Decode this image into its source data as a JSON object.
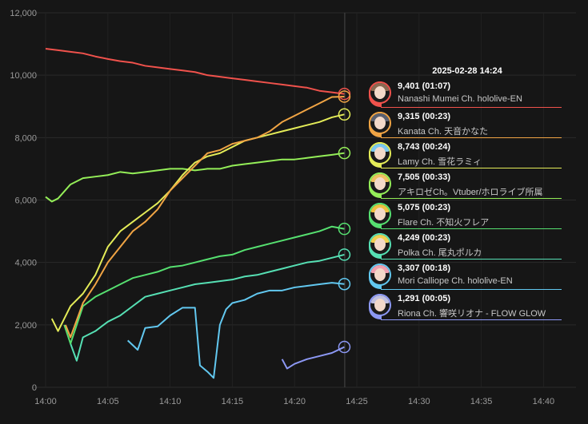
{
  "chart_data": {
    "type": "line",
    "title": "",
    "xlabel": "",
    "ylabel": "",
    "x_ticks": [
      "14:00",
      "14:05",
      "14:10",
      "14:15",
      "14:20",
      "14:25",
      "14:30",
      "14:35",
      "14:40"
    ],
    "y_ticks": [
      "0",
      "2,000",
      "4,000",
      "6,000",
      "8,000",
      "10,000",
      "12,000"
    ],
    "xlim_minutes": [
      0,
      42
    ],
    "ylim": [
      0,
      12000
    ],
    "grid": true,
    "hover_minute": 24,
    "tooltip": {
      "title": "2025-02-28 14:24"
    },
    "series": [
      {
        "name": "Nanashi Mumei Ch. hololive-EN",
        "value_label": "9,401",
        "duration": "(01:07)",
        "color": "#f0524c",
        "hair": "#8a6a52",
        "points": [
          [
            0,
            10850
          ],
          [
            1,
            10800
          ],
          [
            2,
            10750
          ],
          [
            3,
            10700
          ],
          [
            4,
            10600
          ],
          [
            5,
            10520
          ],
          [
            6,
            10450
          ],
          [
            7,
            10400
          ],
          [
            8,
            10300
          ],
          [
            9,
            10250
          ],
          [
            10,
            10200
          ],
          [
            11,
            10150
          ],
          [
            12,
            10100
          ],
          [
            13,
            10000
          ],
          [
            14,
            9950
          ],
          [
            15,
            9900
          ],
          [
            16,
            9850
          ],
          [
            17,
            9800
          ],
          [
            18,
            9750
          ],
          [
            19,
            9700
          ],
          [
            20,
            9650
          ],
          [
            21,
            9600
          ],
          [
            22,
            9500
          ],
          [
            23,
            9450
          ],
          [
            24,
            9401
          ]
        ]
      },
      {
        "name": "Kanata Ch. 天音かなた",
        "value_label": "9,315",
        "duration": "(00:23)",
        "color": "#f0a444",
        "hair": "#5a6070",
        "points": [
          [
            1.6,
            2000
          ],
          [
            2,
            1600
          ],
          [
            3,
            2700
          ],
          [
            4,
            3300
          ],
          [
            5,
            4000
          ],
          [
            6,
            4500
          ],
          [
            7,
            5000
          ],
          [
            8,
            5300
          ],
          [
            9,
            5700
          ],
          [
            10,
            6300
          ],
          [
            11,
            6700
          ],
          [
            12,
            7100
          ],
          [
            13,
            7500
          ],
          [
            14,
            7600
          ],
          [
            15,
            7800
          ],
          [
            16,
            7900
          ],
          [
            17,
            8000
          ],
          [
            18,
            8200
          ],
          [
            19,
            8500
          ],
          [
            20,
            8700
          ],
          [
            21,
            8900
          ],
          [
            22,
            9100
          ],
          [
            23,
            9300
          ],
          [
            24,
            9315
          ]
        ]
      },
      {
        "name": "Lamy Ch. 雪花ラミィ",
        "value_label": "8,743",
        "duration": "(00:24)",
        "color": "#e4ec58",
        "hair": "#7ac8f0",
        "points": [
          [
            0.5,
            2200
          ],
          [
            1,
            1800
          ],
          [
            2,
            2600
          ],
          [
            3,
            3000
          ],
          [
            4,
            3600
          ],
          [
            5,
            4500
          ],
          [
            6,
            5000
          ],
          [
            7,
            5300
          ],
          [
            8,
            5600
          ],
          [
            9,
            5900
          ],
          [
            10,
            6300
          ],
          [
            11,
            6800
          ],
          [
            12,
            7200
          ],
          [
            13,
            7400
          ],
          [
            14,
            7500
          ],
          [
            15,
            7700
          ],
          [
            16,
            7900
          ],
          [
            17,
            8000
          ],
          [
            18,
            8100
          ],
          [
            19,
            8200
          ],
          [
            20,
            8300
          ],
          [
            21,
            8400
          ],
          [
            22,
            8500
          ],
          [
            23,
            8650
          ],
          [
            24,
            8743
          ]
        ]
      },
      {
        "name": "アキロゼCh。Vtuber/ホロライブ所属",
        "value_label": "7,505",
        "duration": "(00:33)",
        "color": "#94ee58",
        "hair": "#f0c060",
        "points": [
          [
            0,
            6100
          ],
          [
            0.5,
            5950
          ],
          [
            1,
            6050
          ],
          [
            2,
            6500
          ],
          [
            3,
            6700
          ],
          [
            4,
            6750
          ],
          [
            5,
            6800
          ],
          [
            6,
            6900
          ],
          [
            7,
            6850
          ],
          [
            8,
            6900
          ],
          [
            9,
            6950
          ],
          [
            10,
            7000
          ],
          [
            11,
            7000
          ],
          [
            12,
            6950
          ],
          [
            13,
            7000
          ],
          [
            14,
            7000
          ],
          [
            15,
            7100
          ],
          [
            16,
            7150
          ],
          [
            17,
            7200
          ],
          [
            18,
            7250
          ],
          [
            19,
            7300
          ],
          [
            20,
            7300
          ],
          [
            21,
            7350
          ],
          [
            22,
            7400
          ],
          [
            23,
            7450
          ],
          [
            24,
            7505
          ]
        ]
      },
      {
        "name": "Flare Ch. 不知火フレア",
        "value_label": "5,075",
        "duration": "(00:23)",
        "color": "#56e070",
        "hair": "#f0c040",
        "points": [
          [
            1.5,
            2000
          ],
          [
            2,
            1400
          ],
          [
            3,
            2600
          ],
          [
            4,
            2900
          ],
          [
            5,
            3100
          ],
          [
            6,
            3300
          ],
          [
            7,
            3500
          ],
          [
            8,
            3600
          ],
          [
            9,
            3700
          ],
          [
            10,
            3850
          ],
          [
            11,
            3900
          ],
          [
            12,
            4000
          ],
          [
            13,
            4100
          ],
          [
            14,
            4200
          ],
          [
            15,
            4250
          ],
          [
            16,
            4400
          ],
          [
            17,
            4500
          ],
          [
            18,
            4600
          ],
          [
            19,
            4700
          ],
          [
            20,
            4800
          ],
          [
            21,
            4900
          ],
          [
            22,
            5000
          ],
          [
            23,
            5150
          ],
          [
            24,
            5075
          ]
        ]
      },
      {
        "name": "Polka Ch. 尾丸ポルカ",
        "value_label": "4,249",
        "duration": "(00:23)",
        "color": "#56e0b4",
        "hair": "#f0d050",
        "points": [
          [
            2,
            1400
          ],
          [
            2.5,
            850
          ],
          [
            3,
            1600
          ],
          [
            4,
            1800
          ],
          [
            5,
            2100
          ],
          [
            6,
            2300
          ],
          [
            7,
            2600
          ],
          [
            8,
            2900
          ],
          [
            9,
            3000
          ],
          [
            10,
            3100
          ],
          [
            11,
            3200
          ],
          [
            12,
            3300
          ],
          [
            13,
            3350
          ],
          [
            14,
            3400
          ],
          [
            15,
            3450
          ],
          [
            16,
            3550
          ],
          [
            17,
            3600
          ],
          [
            18,
            3700
          ],
          [
            19,
            3800
          ],
          [
            20,
            3900
          ],
          [
            21,
            4000
          ],
          [
            22,
            4050
          ],
          [
            23,
            4150
          ],
          [
            24,
            4249
          ]
        ]
      },
      {
        "name": "Mori Calliope Ch. hololive-EN",
        "value_label": "3,307",
        "duration": "(00:18)",
        "color": "#62c8f0",
        "hair": "#f0a0b0",
        "points": [
          [
            6.6,
            1500
          ],
          [
            7,
            1350
          ],
          [
            7.4,
            1200
          ],
          [
            8,
            1900
          ],
          [
            9,
            1950
          ],
          [
            10,
            2300
          ],
          [
            11,
            2550
          ],
          [
            12,
            2550
          ],
          [
            12.4,
            700
          ],
          [
            13,
            500
          ],
          [
            13.5,
            300
          ],
          [
            14,
            2000
          ],
          [
            14.5,
            2500
          ],
          [
            15,
            2700
          ],
          [
            16,
            2800
          ],
          [
            17,
            3000
          ],
          [
            18,
            3100
          ],
          [
            19,
            3100
          ],
          [
            20,
            3200
          ],
          [
            21,
            3250
          ],
          [
            22,
            3300
          ],
          [
            23,
            3350
          ],
          [
            24,
            3307
          ]
        ]
      },
      {
        "name": "Riona Ch. 響咲リオナ - FLOW GLOW",
        "value_label": "1,291",
        "duration": "(00:05)",
        "color": "#8c98f4",
        "hair": "#c0c0e0",
        "points": [
          [
            19,
            900
          ],
          [
            19.4,
            600
          ],
          [
            20,
            750
          ],
          [
            21,
            900
          ],
          [
            22,
            1000
          ],
          [
            23,
            1100
          ],
          [
            24,
            1291
          ]
        ]
      }
    ]
  }
}
